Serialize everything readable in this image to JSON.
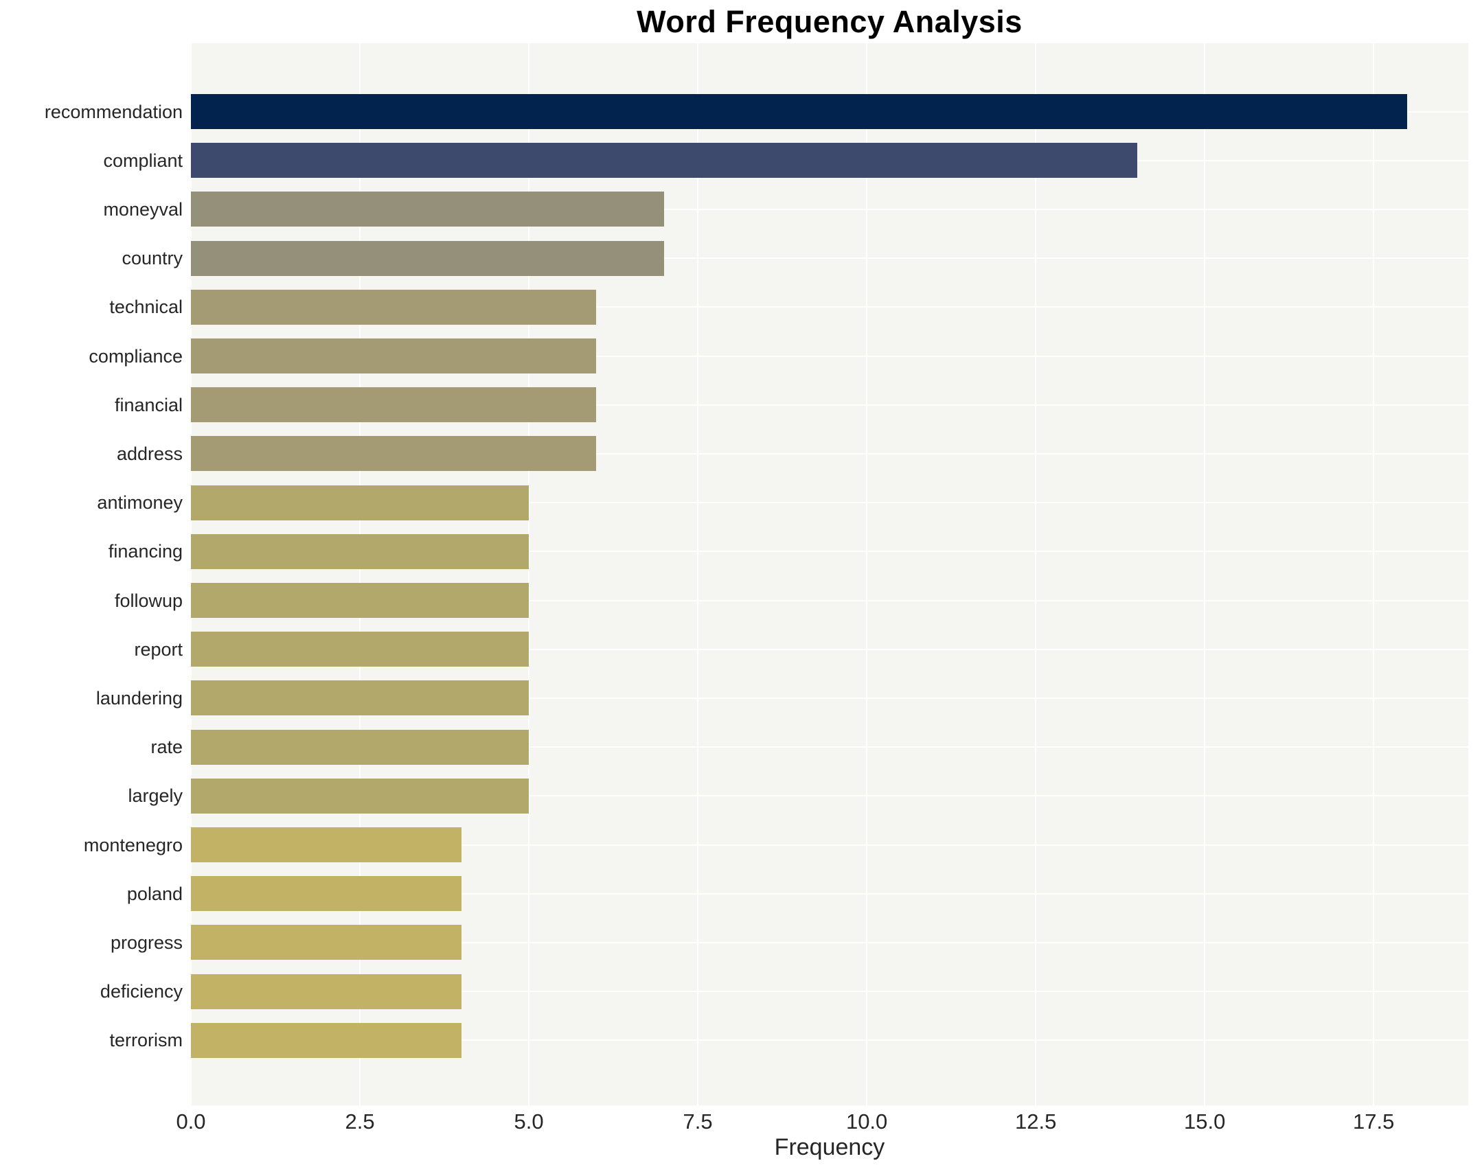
{
  "chart_data": {
    "type": "bar",
    "orientation": "horizontal",
    "title": "Word Frequency Analysis",
    "xlabel": "Frequency",
    "ylabel": "",
    "xlim": [
      0,
      18.9
    ],
    "xticks": [
      "0.0",
      "2.5",
      "5.0",
      "7.5",
      "10.0",
      "12.5",
      "15.0",
      "17.5"
    ],
    "grid": "on",
    "plot_background": "#f5f5f2",
    "gridline_color": "#ffffff",
    "text_color": "#262626",
    "categories": [
      "recommendation",
      "compliant",
      "moneyval",
      "country",
      "technical",
      "compliance",
      "financial",
      "address",
      "antimoney",
      "financing",
      "followup",
      "report",
      "laundering",
      "rate",
      "largely",
      "montenegro",
      "poland",
      "progress",
      "deficiency",
      "terrorism"
    ],
    "values": [
      18,
      14,
      7,
      7,
      6,
      6,
      6,
      6,
      5,
      5,
      5,
      5,
      5,
      5,
      5,
      4,
      4,
      4,
      4,
      4
    ],
    "bar_colors": [
      "#02234e",
      "#3d4a6e",
      "#95907a",
      "#95907a",
      "#a49b74",
      "#a49b74",
      "#a49b74",
      "#a49b74",
      "#b2a86b",
      "#b2a86b",
      "#b2a86b",
      "#b2a86b",
      "#b2a86b",
      "#b2a86b",
      "#b2a86b",
      "#c2b266",
      "#c2b266",
      "#c2b266",
      "#c2b266",
      "#c2b266"
    ]
  }
}
